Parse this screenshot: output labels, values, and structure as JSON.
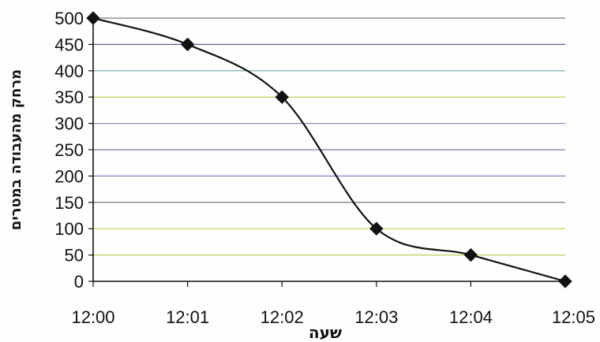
{
  "chart_data": {
    "type": "line",
    "title": "",
    "xlabel": "שעה",
    "ylabel": "מרחק מהעבודה במטרים",
    "categories": [
      "12:00",
      "12:01",
      "12:02",
      "12:03",
      "12:04",
      "12:05"
    ],
    "values": [
      500,
      450,
      350,
      100,
      50,
      0
    ],
    "ylim": [
      0,
      500
    ],
    "yticks": [
      0,
      50,
      100,
      150,
      200,
      250,
      300,
      350,
      400,
      450,
      500
    ],
    "grid": true,
    "smooth": true,
    "marker": "diamond",
    "line_color": "#111111",
    "gridline_colors": {
      "0": "#555555",
      "50": "#b9cf5a",
      "100": "#c7d24a",
      "150": "#666666",
      "200": "#8a7fbf",
      "250": "#8b6fb0",
      "300": "#9a86c6",
      "350": "#b5c94d",
      "400": "#7aa4a8",
      "450": "#5e5e8a",
      "500": "#777777"
    }
  }
}
